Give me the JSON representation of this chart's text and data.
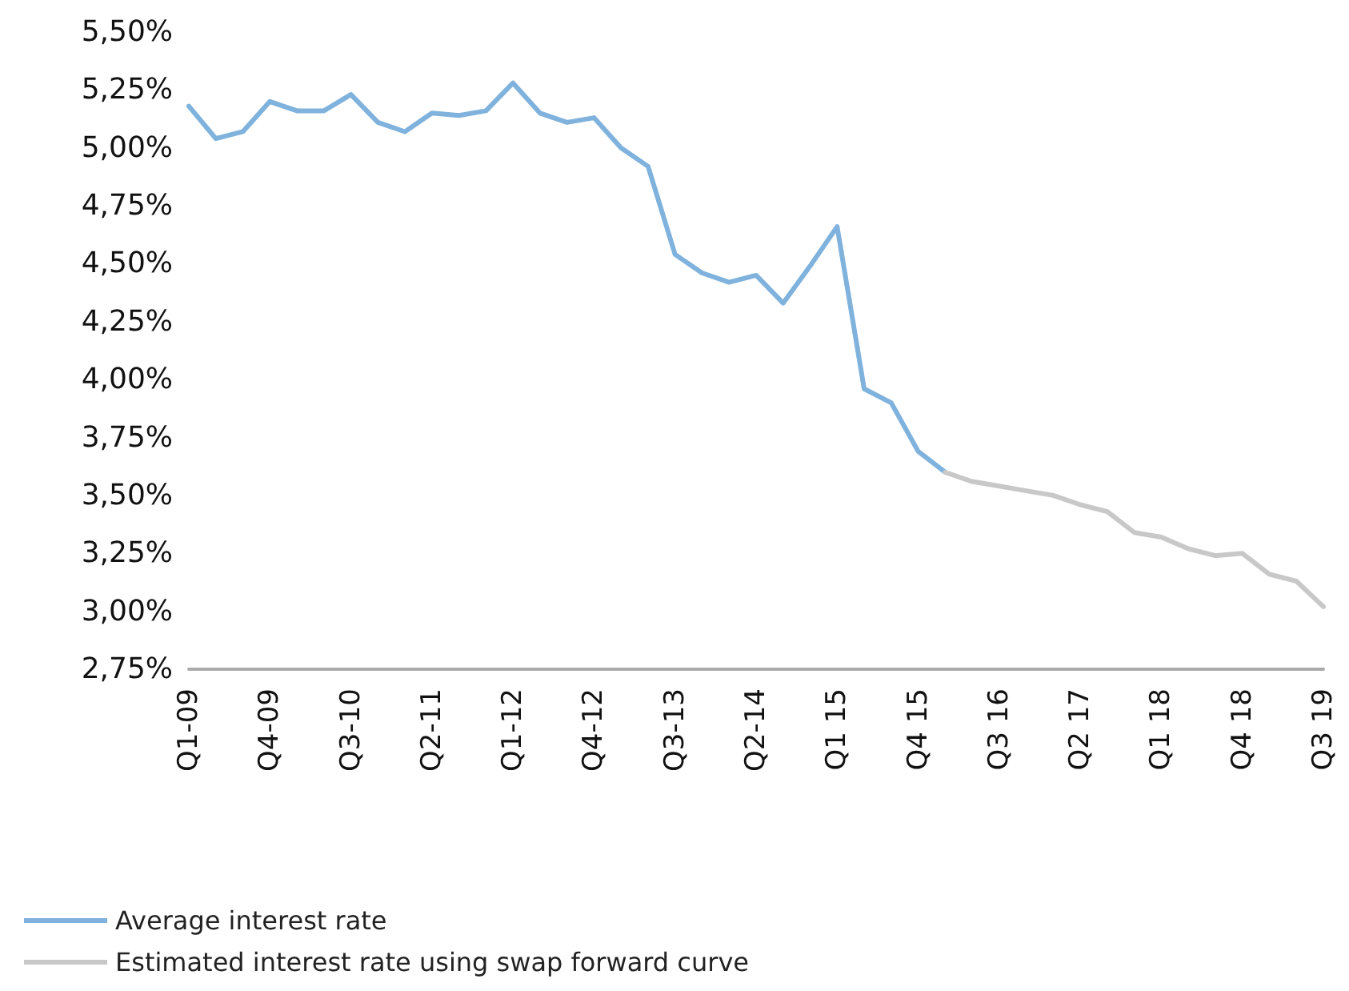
{
  "chart_data": {
    "type": "line",
    "categories": [
      "Q1-09",
      null,
      null,
      "Q4-09",
      null,
      null,
      "Q3-10",
      null,
      null,
      "Q2-11",
      null,
      null,
      "Q1-12",
      null,
      null,
      "Q4-12",
      null,
      null,
      "Q3-13",
      null,
      null,
      "Q2-14",
      null,
      null,
      "Q1 15",
      null,
      null,
      "Q4 15",
      null,
      null,
      "Q3 16",
      null,
      null,
      "Q2 17",
      null,
      null,
      "Q1 18",
      null,
      null,
      "Q4 18",
      null,
      null,
      "Q3 19"
    ],
    "series": [
      {
        "name": "Average interest rate",
        "color": "#7fb2dc",
        "values": [
          5.18,
          5.04,
          5.07,
          5.2,
          5.16,
          5.16,
          5.23,
          5.11,
          5.07,
          5.15,
          5.14,
          5.16,
          5.28,
          5.15,
          5.11,
          5.13,
          5.0,
          4.92,
          4.54,
          4.46,
          4.42,
          4.45,
          4.33,
          4.49,
          4.66,
          3.96,
          3.9,
          3.69,
          3.6,
          null,
          null,
          null,
          null,
          null,
          null,
          null,
          null,
          null,
          null,
          null,
          null,
          null,
          null
        ]
      },
      {
        "name": "Estimated interest rate using swap forward curve",
        "color": "#c8c8c8",
        "values": [
          null,
          null,
          null,
          null,
          null,
          null,
          null,
          null,
          null,
          null,
          null,
          null,
          null,
          null,
          null,
          null,
          null,
          null,
          null,
          null,
          null,
          null,
          null,
          null,
          null,
          null,
          null,
          null,
          3.6,
          3.56,
          3.54,
          3.52,
          3.5,
          3.46,
          3.43,
          3.34,
          3.32,
          3.27,
          3.24,
          3.25,
          3.16,
          3.13,
          3.02
        ]
      }
    ],
    "ylim": [
      2.75,
      5.5
    ],
    "yticks": [
      {
        "value": 2.75,
        "label": "2,75%"
      },
      {
        "value": 3.0,
        "label": "3,00%"
      },
      {
        "value": 3.25,
        "label": "3,25%"
      },
      {
        "value": 3.5,
        "label": "3,50%"
      },
      {
        "value": 3.75,
        "label": "3,75%"
      },
      {
        "value": 4.0,
        "label": "4,00%"
      },
      {
        "value": 4.25,
        "label": "4,25%"
      },
      {
        "value": 4.5,
        "label": "4,50%"
      },
      {
        "value": 4.75,
        "label": "4,75%"
      },
      {
        "value": 5.0,
        "label": "5,00%"
      },
      {
        "value": 5.25,
        "label": "5,25%"
      },
      {
        "value": 5.5,
        "label": "5,50%"
      }
    ],
    "grid": false,
    "legend": "bottom",
    "marker": "none",
    "line_style": "solid"
  }
}
